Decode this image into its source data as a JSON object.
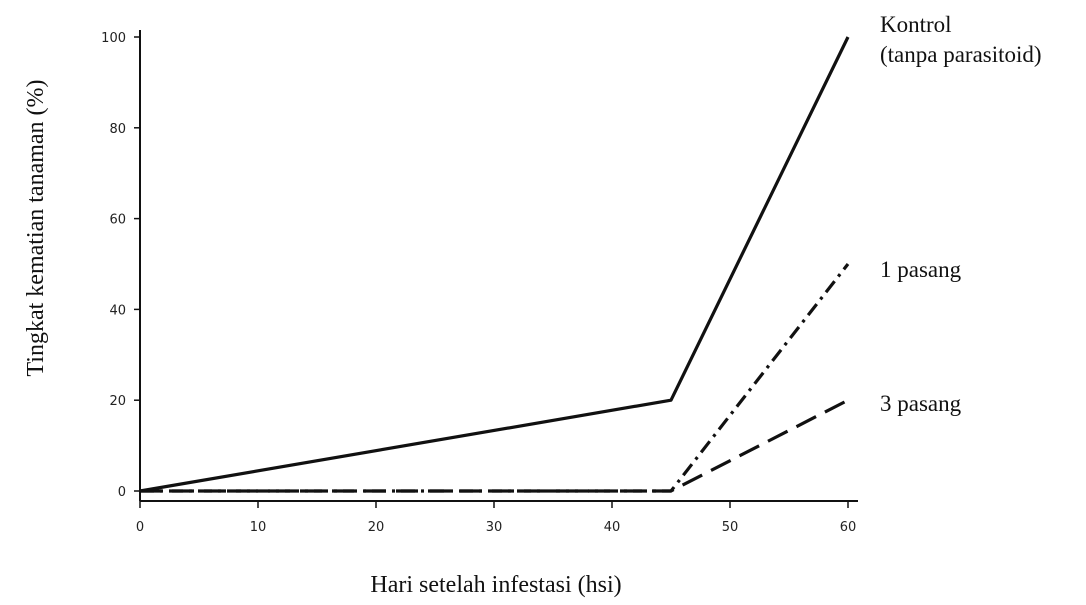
{
  "chart_data": {
    "type": "line",
    "xlabel": "Hari setelah infestasi (hsi)",
    "ylabel": "Tingkat kematian tanaman (%)",
    "xlim": [
      0,
      60
    ],
    "ylim": [
      0,
      100
    ],
    "x_ticks": [
      "0",
      "10",
      "20",
      "30",
      "40",
      "50",
      "60"
    ],
    "y_ticks": [
      "0",
      "20",
      "40",
      "60",
      "80",
      "100"
    ],
    "grid": false,
    "series": [
      {
        "name": "Kontrol (tanpa parasitoid)",
        "label_lines": [
          "Kontrol",
          "(tanpa parasitoid)"
        ],
        "style": "solid",
        "points": [
          [
            0,
            0
          ],
          [
            45,
            20
          ],
          [
            60,
            100
          ]
        ]
      },
      {
        "name": "1 pasang",
        "label_lines": [
          "1 pasang"
        ],
        "style": "dash-dot",
        "points": [
          [
            0,
            0
          ],
          [
            45,
            0
          ],
          [
            60,
            50
          ]
        ]
      },
      {
        "name": "3 pasang",
        "label_lines": [
          "3 pasang"
        ],
        "style": "dashed",
        "points": [
          [
            0,
            0
          ],
          [
            45,
            0
          ],
          [
            60,
            20
          ]
        ]
      }
    ]
  }
}
